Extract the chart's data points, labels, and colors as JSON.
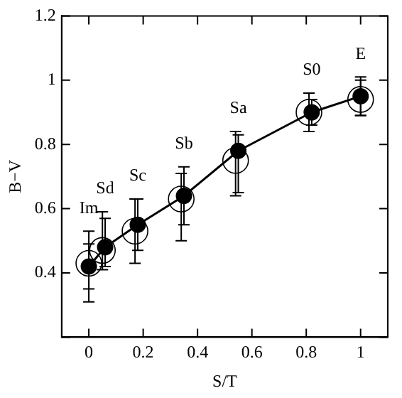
{
  "chart_data": {
    "type": "scatter",
    "xlabel": "S/T",
    "ylabel": "B−V",
    "xlim": [
      -0.1,
      1.1
    ],
    "xticks": [
      0,
      0.2,
      0.4,
      0.6,
      0.8,
      1
    ],
    "ylim": [
      0.2,
      1.2
    ],
    "yticks": [
      {
        "value": 0.2,
        "label": null
      },
      0.4,
      0.6,
      0.8,
      1,
      1.2
    ],
    "grid": false,
    "legend": false,
    "marker": "circle",
    "line_style": "solid",
    "series": [
      {
        "type": "line",
        "color": "#000000",
        "x": [
          0,
          0.06,
          0.18,
          0.35,
          0.55,
          0.82,
          1.0
        ],
        "values": [
          0.42,
          0.48,
          0.55,
          0.64,
          0.78,
          0.9,
          0.95
        ],
        "errors": [
          [
            0.35,
            0.49
          ],
          [
            0.42,
            0.57
          ],
          [
            0.47,
            0.63
          ],
          [
            0.55,
            0.73
          ],
          [
            0.65,
            0.83
          ],
          [
            0.86,
            0.94
          ],
          [
            0.89,
            1.01
          ]
        ]
      },
      {
        "color": "#000000",
        "x": [
          0,
          0.05,
          0.17,
          0.34,
          0.54,
          0.81,
          1.0
        ],
        "values": [
          0.43,
          0.47,
          0.53,
          0.63,
          0.75,
          0.9,
          0.94
        ],
        "errors": [
          [
            0.31,
            0.53
          ],
          [
            0.41,
            0.59
          ],
          [
            0.43,
            0.63
          ],
          [
            0.5,
            0.71
          ],
          [
            0.64,
            0.84
          ],
          [
            0.84,
            0.96
          ],
          [
            0.89,
            1.0
          ]
        ]
      }
    ],
    "annotations": [
      {
        "text": "Im",
        "x": 0,
        "y": 0.42
      },
      {
        "text": "Sd",
        "x": 0.06,
        "y": 0.48
      },
      {
        "text": "Sc",
        "x": 0.18,
        "y": 0.55
      },
      {
        "text": "Sb",
        "x": 0.35,
        "y": 0.64
      },
      {
        "text": "Sa",
        "x": 0.55,
        "y": 0.78
      },
      {
        "text": "S0",
        "x": 0.82,
        "y": 0.9
      },
      {
        "text": "E",
        "x": 1.0,
        "y": 0.95
      }
    ]
  }
}
